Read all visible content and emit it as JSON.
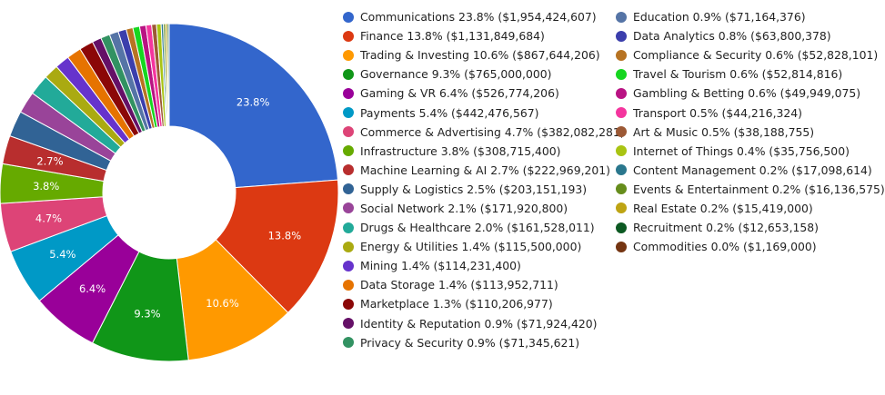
{
  "chart_data": {
    "type": "pie",
    "donut": true,
    "slices": [
      {
        "label": "Communications",
        "percent": "23.8%",
        "value": 1954424607,
        "value_text": "$1,954,424,607",
        "color": "#3366cc"
      },
      {
        "label": "Finance",
        "percent": "13.8%",
        "value": 1131849684,
        "value_text": "$1,131,849,684",
        "color": "#dc3912"
      },
      {
        "label": "Trading & Investing",
        "percent": "10.6%",
        "value": 867644206,
        "value_text": "$867,644,206",
        "color": "#ff9900"
      },
      {
        "label": "Governance",
        "percent": "9.3%",
        "value": 765000000,
        "value_text": "$765,000,000",
        "color": "#109618"
      },
      {
        "label": "Gaming & VR",
        "percent": "6.4%",
        "value": 526774206,
        "value_text": "$526,774,206",
        "color": "#990099"
      },
      {
        "label": "Payments",
        "percent": "5.4%",
        "value": 442476567,
        "value_text": "$442,476,567",
        "color": "#0099c6"
      },
      {
        "label": "Commerce & Advertising",
        "percent": "4.7%",
        "value": 382082281,
        "value_text": "$382,082,281",
        "color": "#dd4477"
      },
      {
        "label": "Infrastructure",
        "percent": "3.8%",
        "value": 308715400,
        "value_text": "$308,715,400",
        "color": "#66aa00"
      },
      {
        "label": "Machine Learning & AI",
        "percent": "2.7%",
        "value": 222969201,
        "value_text": "$222,969,201",
        "color": "#b82e2e"
      },
      {
        "label": "Supply & Logistics",
        "percent": "2.5%",
        "value": 203151193,
        "value_text": "$203,151,193",
        "color": "#316395"
      },
      {
        "label": "Social Network",
        "percent": "2.1%",
        "value": 171920800,
        "value_text": "$171,920,800",
        "color": "#994499"
      },
      {
        "label": "Drugs & Healthcare",
        "percent": "2.0%",
        "value": 161528011,
        "value_text": "$161,528,011",
        "color": "#22aa99"
      },
      {
        "label": "Energy & Utilities",
        "percent": "1.4%",
        "value": 115500000,
        "value_text": "$115,500,000",
        "color": "#aaaa11"
      },
      {
        "label": "Mining",
        "percent": "1.4%",
        "value": 114231400,
        "value_text": "$114,231,400",
        "color": "#6633cc"
      },
      {
        "label": "Data Storage",
        "percent": "1.4%",
        "value": 113952711,
        "value_text": "$113,952,711",
        "color": "#e67300"
      },
      {
        "label": "Marketplace",
        "percent": "1.3%",
        "value": 110206977,
        "value_text": "$110,206,977",
        "color": "#8b0707"
      },
      {
        "label": "Identity & Reputation",
        "percent": "0.9%",
        "value": 71924420,
        "value_text": "$71,924,420",
        "color": "#651067"
      },
      {
        "label": "Privacy & Security",
        "percent": "0.9%",
        "value": 71345621,
        "value_text": "$71,345,621",
        "color": "#329262"
      },
      {
        "label": "Education",
        "percent": "0.9%",
        "value": 71164376,
        "value_text": "$71,164,376",
        "color": "#5574a6"
      },
      {
        "label": "Data Analytics",
        "percent": "0.8%",
        "value": 63800378,
        "value_text": "$63,800,378",
        "color": "#3b3eac"
      },
      {
        "label": "Compliance & Security",
        "percent": "0.6%",
        "value": 52828101,
        "value_text": "$52,828,101",
        "color": "#b77322"
      },
      {
        "label": "Travel & Tourism",
        "percent": "0.6%",
        "value": 52814816,
        "value_text": "$52,814,816",
        "color": "#16d620"
      },
      {
        "label": "Gambling & Betting",
        "percent": "0.6%",
        "value": 49949075,
        "value_text": "$49,949,075",
        "color": "#b91383"
      },
      {
        "label": "Transport",
        "percent": "0.5%",
        "value": 44216324,
        "value_text": "$44,216,324",
        "color": "#f4359e"
      },
      {
        "label": "Art & Music",
        "percent": "0.5%",
        "value": 38188755,
        "value_text": "$38,188,755",
        "color": "#9c5935"
      },
      {
        "label": "Internet of Things",
        "percent": "0.4%",
        "value": 35756500,
        "value_text": "$35,756,500",
        "color": "#a9c413"
      },
      {
        "label": "Content Management",
        "percent": "0.2%",
        "value": 17098614,
        "value_text": "$17,098,614",
        "color": "#2a778d"
      },
      {
        "label": "Events & Entertainment",
        "percent": "0.2%",
        "value": 16136575,
        "value_text": "$16,136,575",
        "color": "#668d1c"
      },
      {
        "label": "Real Estate",
        "percent": "0.2%",
        "value": 15419000,
        "value_text": "$15,419,000",
        "color": "#bea413"
      },
      {
        "label": "Recruitment",
        "percent": "0.2%",
        "value": 12653158,
        "value_text": "$12,653,158",
        "color": "#0c5922"
      },
      {
        "label": "Commodities",
        "percent": "0.0%",
        "value": 1169000,
        "value_text": "$1,169,000",
        "color": "#743411"
      }
    ],
    "slice_labels_shown": [
      "23.8%",
      "13.8%",
      "10.6%",
      "9.3%",
      "6.4%",
      "5.4%",
      "4.7%",
      "3.8%",
      "2.7%"
    ],
    "legend_position": "right"
  }
}
